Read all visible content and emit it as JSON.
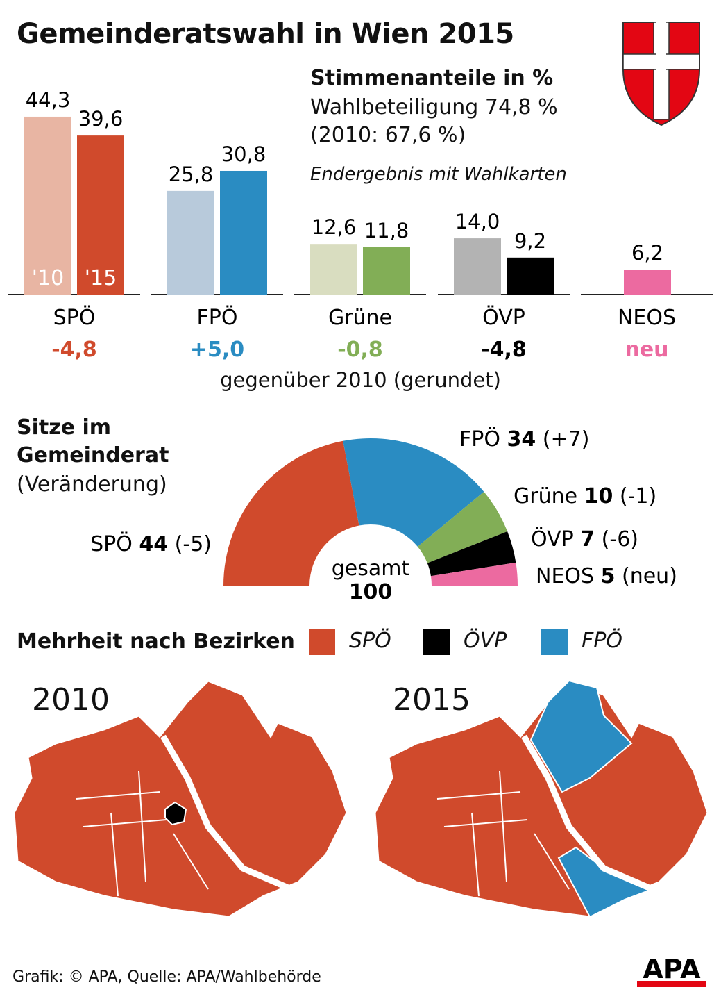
{
  "title": "Gemeinderatswahl in Wien 2015",
  "votes_heading": "Stimmenanteile in %",
  "turnout": "Wahlbeteiligung 74,8 %",
  "turnout_2010": "(2010: 67,6 %)",
  "note": "Endergebnis mit Wahlkarten",
  "change_caption": "gegenüber 2010 (gerundet)",
  "seats_heading_1": "Sitze im",
  "seats_heading_2": "Gemeinderat",
  "seats_heading_3": "(Veränderung)",
  "seats_total_label": "gesamt",
  "seats_total": "100",
  "majority_heading": "Mehrheit nach Bezirken",
  "map_legend": [
    {
      "label": "SPÖ",
      "color": "#d04a2c"
    },
    {
      "label": "ÖVP",
      "color": "#000000"
    },
    {
      "label": "FPÖ",
      "color": "#2a8cc2"
    }
  ],
  "map_2010_label": "2010",
  "map_2015_label": "2015",
  "footer": "Grafik: © APA, Quelle: APA/Wahlbehörde",
  "logo": "APA",
  "chart_data": [
    {
      "type": "bar",
      "categories": [
        "SPÖ",
        "FPÖ",
        "Grüne",
        "ÖVP",
        "NEOS"
      ],
      "series": [
        {
          "name": "'10",
          "values": [
            44.3,
            25.8,
            12.6,
            14.0,
            null
          ],
          "labels": [
            "44,3",
            "25,8",
            "12,6",
            "14,0",
            ""
          ],
          "colors": [
            "#e8b5a3",
            "#b8cadb",
            "#d9ddc0",
            "#b3b3b3",
            ""
          ]
        },
        {
          "name": "'15",
          "values": [
            39.6,
            30.8,
            11.8,
            9.2,
            6.2
          ],
          "labels": [
            "39,6",
            "30,8",
            "11,8",
            "9,2",
            "6,2"
          ],
          "colors": [
            "#d04a2c",
            "#2a8cc2",
            "#82ae56",
            "#000000",
            "#ec6aa0"
          ]
        }
      ],
      "changes": [
        "-4,8",
        "+5,0",
        "-0,8",
        "-4,8",
        "neu"
      ],
      "change_colors": [
        "#d04a2c",
        "#2a8cc2",
        "#82ae56",
        "#000000",
        "#ec6aa0"
      ]
    },
    {
      "type": "pie",
      "variant": "semicircle",
      "slices": [
        {
          "party": "SPÖ",
          "seats": 44,
          "change": "(-5)",
          "color": "#d04a2c"
        },
        {
          "party": "FPÖ",
          "seats": 34,
          "change": "(+7)",
          "color": "#2a8cc2"
        },
        {
          "party": "Grüne",
          "seats": 10,
          "change": "(-1)",
          "color": "#82ae56"
        },
        {
          "party": "ÖVP",
          "seats": 7,
          "change": "(-6)",
          "color": "#000000"
        },
        {
          "party": "NEOS",
          "seats": 5,
          "change": "(neu)",
          "color": "#ec6aa0"
        }
      ]
    }
  ]
}
